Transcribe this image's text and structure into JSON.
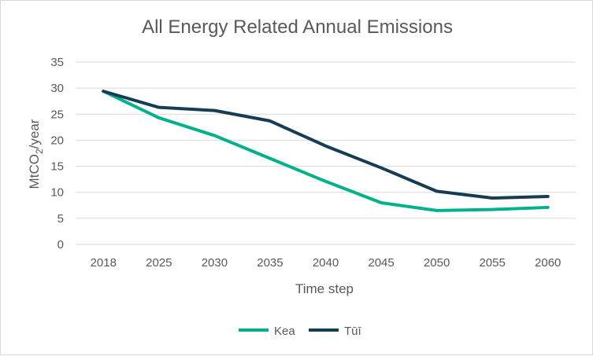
{
  "chart_data": {
    "type": "line",
    "title": "All Energy Related Annual Emissions",
    "xlabel": "Time step",
    "ylabel_main": "MtCO",
    "ylabel_sub": "2",
    "ylabel_tail": "/year",
    "categories": [
      "2018",
      "2025",
      "2030",
      "2035",
      "2040",
      "2045",
      "2050",
      "2055",
      "2060"
    ],
    "y_ticks": [
      "0",
      "5",
      "10",
      "15",
      "20",
      "25",
      "30",
      "35"
    ],
    "ylim": [
      0,
      35
    ],
    "grid": true,
    "legend_position": "bottom",
    "series": [
      {
        "name": "Kea",
        "color": "#00b28a",
        "values": [
          29.4,
          24.3,
          20.9,
          16.5,
          12.1,
          8.0,
          6.5,
          6.7,
          7.1
        ]
      },
      {
        "name": "Tūī",
        "color": "#173d55",
        "values": [
          29.4,
          26.3,
          25.7,
          23.7,
          18.9,
          14.7,
          10.2,
          8.9,
          9.2
        ]
      }
    ]
  }
}
